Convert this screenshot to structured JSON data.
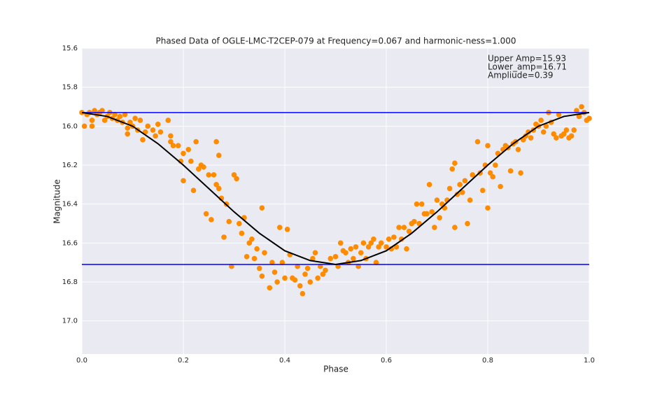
{
  "chart_data": {
    "type": "scatter",
    "title": "Phased Data of OGLE-LMC-T2CEP-079 at Frequency=0.067 and harmonic-ness=1.000",
    "x_label": "Phase",
    "y_label": "Magnitude",
    "annotations": [
      "Upper Amp=15.93",
      "Lower_amp=16.71",
      "Ampliude=0.39"
    ],
    "xlim": [
      0,
      1
    ],
    "xticks": [
      {
        "value": 0,
        "label": "0.0"
      },
      0.2,
      0.4,
      0.6,
      0.8,
      {
        "value": 1,
        "label": "1.0"
      }
    ],
    "ylim": [
      15.6,
      17.17
    ],
    "y_inverted": true,
    "yticks": [
      15.6,
      15.8,
      {
        "value": 16,
        "label": "16.0"
      },
      16.2,
      16.4,
      16.6,
      16.8,
      {
        "value": 17,
        "label": "17.0"
      }
    ],
    "grid": true,
    "hlines": {
      "values": [
        15.93,
        16.71
      ],
      "color": "#0000ff"
    },
    "series": [
      {
        "kind": "scatter",
        "color": "#ff8c00",
        "x": [
          0.0,
          0.005,
          0.01,
          0.015,
          0.02,
          0.02,
          0.025,
          0.03,
          0.035,
          0.04,
          0.045,
          0.05,
          0.055,
          0.06,
          0.065,
          0.07,
          0.075,
          0.08,
          0.085,
          0.09,
          0.09,
          0.095,
          0.1,
          0.105,
          0.11,
          0.115,
          0.12,
          0.125,
          0.13,
          0.14,
          0.145,
          0.15,
          0.155,
          0.17,
          0.175,
          0.175,
          0.18,
          0.19,
          0.195,
          0.2,
          0.2,
          0.21,
          0.215,
          0.22,
          0.225,
          0.23,
          0.235,
          0.24,
          0.245,
          0.25,
          0.255,
          0.26,
          0.265,
          0.265,
          0.27,
          0.27,
          0.275,
          0.28,
          0.285,
          0.29,
          0.295,
          0.3,
          0.305,
          0.31,
          0.315,
          0.32,
          0.325,
          0.33,
          0.335,
          0.34,
          0.345,
          0.35,
          0.355,
          0.355,
          0.36,
          0.37,
          0.375,
          0.38,
          0.385,
          0.39,
          0.395,
          0.4,
          0.405,
          0.41,
          0.415,
          0.42,
          0.425,
          0.43,
          0.435,
          0.44,
          0.445,
          0.45,
          0.455,
          0.46,
          0.465,
          0.47,
          0.475,
          0.48,
          0.49,
          0.5,
          0.505,
          0.51,
          0.515,
          0.52,
          0.525,
          0.53,
          0.535,
          0.54,
          0.545,
          0.55,
          0.555,
          0.56,
          0.565,
          0.57,
          0.575,
          0.58,
          0.585,
          0.59,
          0.6,
          0.605,
          0.61,
          0.615,
          0.62,
          0.625,
          0.63,
          0.635,
          0.64,
          0.645,
          0.65,
          0.655,
          0.66,
          0.665,
          0.67,
          0.675,
          0.68,
          0.685,
          0.69,
          0.695,
          0.7,
          0.705,
          0.71,
          0.715,
          0.72,
          0.725,
          0.73,
          0.735,
          0.735,
          0.74,
          0.745,
          0.75,
          0.755,
          0.76,
          0.765,
          0.77,
          0.78,
          0.785,
          0.79,
          0.795,
          0.8,
          0.8,
          0.805,
          0.81,
          0.815,
          0.82,
          0.825,
          0.83,
          0.835,
          0.84,
          0.845,
          0.85,
          0.855,
          0.86,
          0.865,
          0.87,
          0.875,
          0.88,
          0.885,
          0.89,
          0.895,
          0.9,
          0.905,
          0.91,
          0.915,
          0.92,
          0.925,
          0.93,
          0.935,
          0.94,
          0.945,
          0.95,
          0.955,
          0.96,
          0.965,
          0.97,
          0.975,
          0.98,
          0.985,
          0.99,
          0.995,
          1.0
        ],
        "values": [
          15.93,
          16.0,
          15.94,
          15.93,
          15.97,
          16.0,
          15.92,
          15.94,
          15.93,
          15.92,
          15.97,
          15.95,
          15.93,
          15.96,
          15.94,
          15.97,
          15.95,
          15.98,
          15.94,
          16.01,
          16.04,
          15.98,
          16.0,
          15.96,
          16.02,
          15.97,
          16.07,
          16.03,
          16.0,
          16.02,
          16.05,
          15.99,
          16.03,
          15.97,
          16.05,
          16.08,
          16.1,
          16.1,
          16.18,
          16.14,
          16.28,
          16.12,
          16.18,
          16.33,
          16.08,
          16.22,
          16.2,
          16.21,
          16.45,
          16.25,
          16.48,
          16.25,
          16.3,
          16.08,
          16.15,
          16.32,
          16.37,
          16.57,
          16.4,
          16.49,
          16.72,
          16.25,
          16.27,
          16.5,
          16.55,
          16.47,
          16.67,
          16.6,
          16.58,
          16.68,
          16.63,
          16.73,
          16.42,
          16.77,
          16.65,
          16.83,
          16.7,
          16.75,
          16.8,
          16.52,
          16.7,
          16.78,
          16.53,
          16.66,
          16.78,
          16.79,
          16.72,
          16.82,
          16.86,
          16.76,
          16.73,
          16.8,
          16.68,
          16.65,
          16.78,
          16.72,
          16.76,
          16.74,
          16.68,
          16.67,
          16.72,
          16.6,
          16.64,
          16.65,
          16.7,
          16.63,
          16.68,
          16.62,
          16.72,
          16.65,
          16.6,
          16.68,
          16.62,
          16.6,
          16.58,
          16.7,
          16.62,
          16.6,
          16.62,
          16.58,
          16.63,
          16.57,
          16.62,
          16.52,
          16.58,
          16.52,
          16.63,
          16.54,
          16.5,
          16.49,
          16.4,
          16.5,
          16.4,
          16.45,
          16.45,
          16.3,
          16.44,
          16.52,
          16.38,
          16.47,
          16.4,
          16.42,
          16.38,
          16.32,
          16.22,
          16.52,
          16.19,
          16.35,
          16.3,
          16.34,
          16.28,
          16.5,
          16.38,
          16.25,
          16.08,
          16.24,
          16.33,
          16.2,
          16.42,
          16.1,
          16.24,
          16.26,
          16.2,
          16.14,
          16.31,
          16.12,
          16.1,
          16.11,
          16.23,
          16.09,
          16.08,
          16.12,
          16.24,
          16.07,
          16.05,
          16.03,
          16.06,
          16.02,
          15.99,
          16.0,
          15.97,
          16.03,
          16.0,
          15.93,
          15.98,
          16.04,
          16.06,
          15.94,
          16.05,
          16.04,
          16.02,
          16.06,
          16.05,
          16.02,
          15.92,
          15.95,
          15.9,
          15.93,
          15.97,
          15.96
        ]
      },
      {
        "kind": "line",
        "color": "#000000",
        "x": [
          0,
          0.05,
          0.1,
          0.15,
          0.2,
          0.25,
          0.3,
          0.35,
          0.4,
          0.45,
          0.5,
          0.55,
          0.6,
          0.65,
          0.7,
          0.75,
          0.8,
          0.85,
          0.9,
          0.95,
          1
        ],
        "values": [
          15.93,
          15.95,
          16.0,
          16.09,
          16.2,
          16.32,
          16.44,
          16.55,
          16.64,
          16.69,
          16.71,
          16.69,
          16.64,
          16.55,
          16.44,
          16.32,
          16.2,
          16.09,
          16.0,
          15.95,
          15.93
        ]
      }
    ]
  }
}
